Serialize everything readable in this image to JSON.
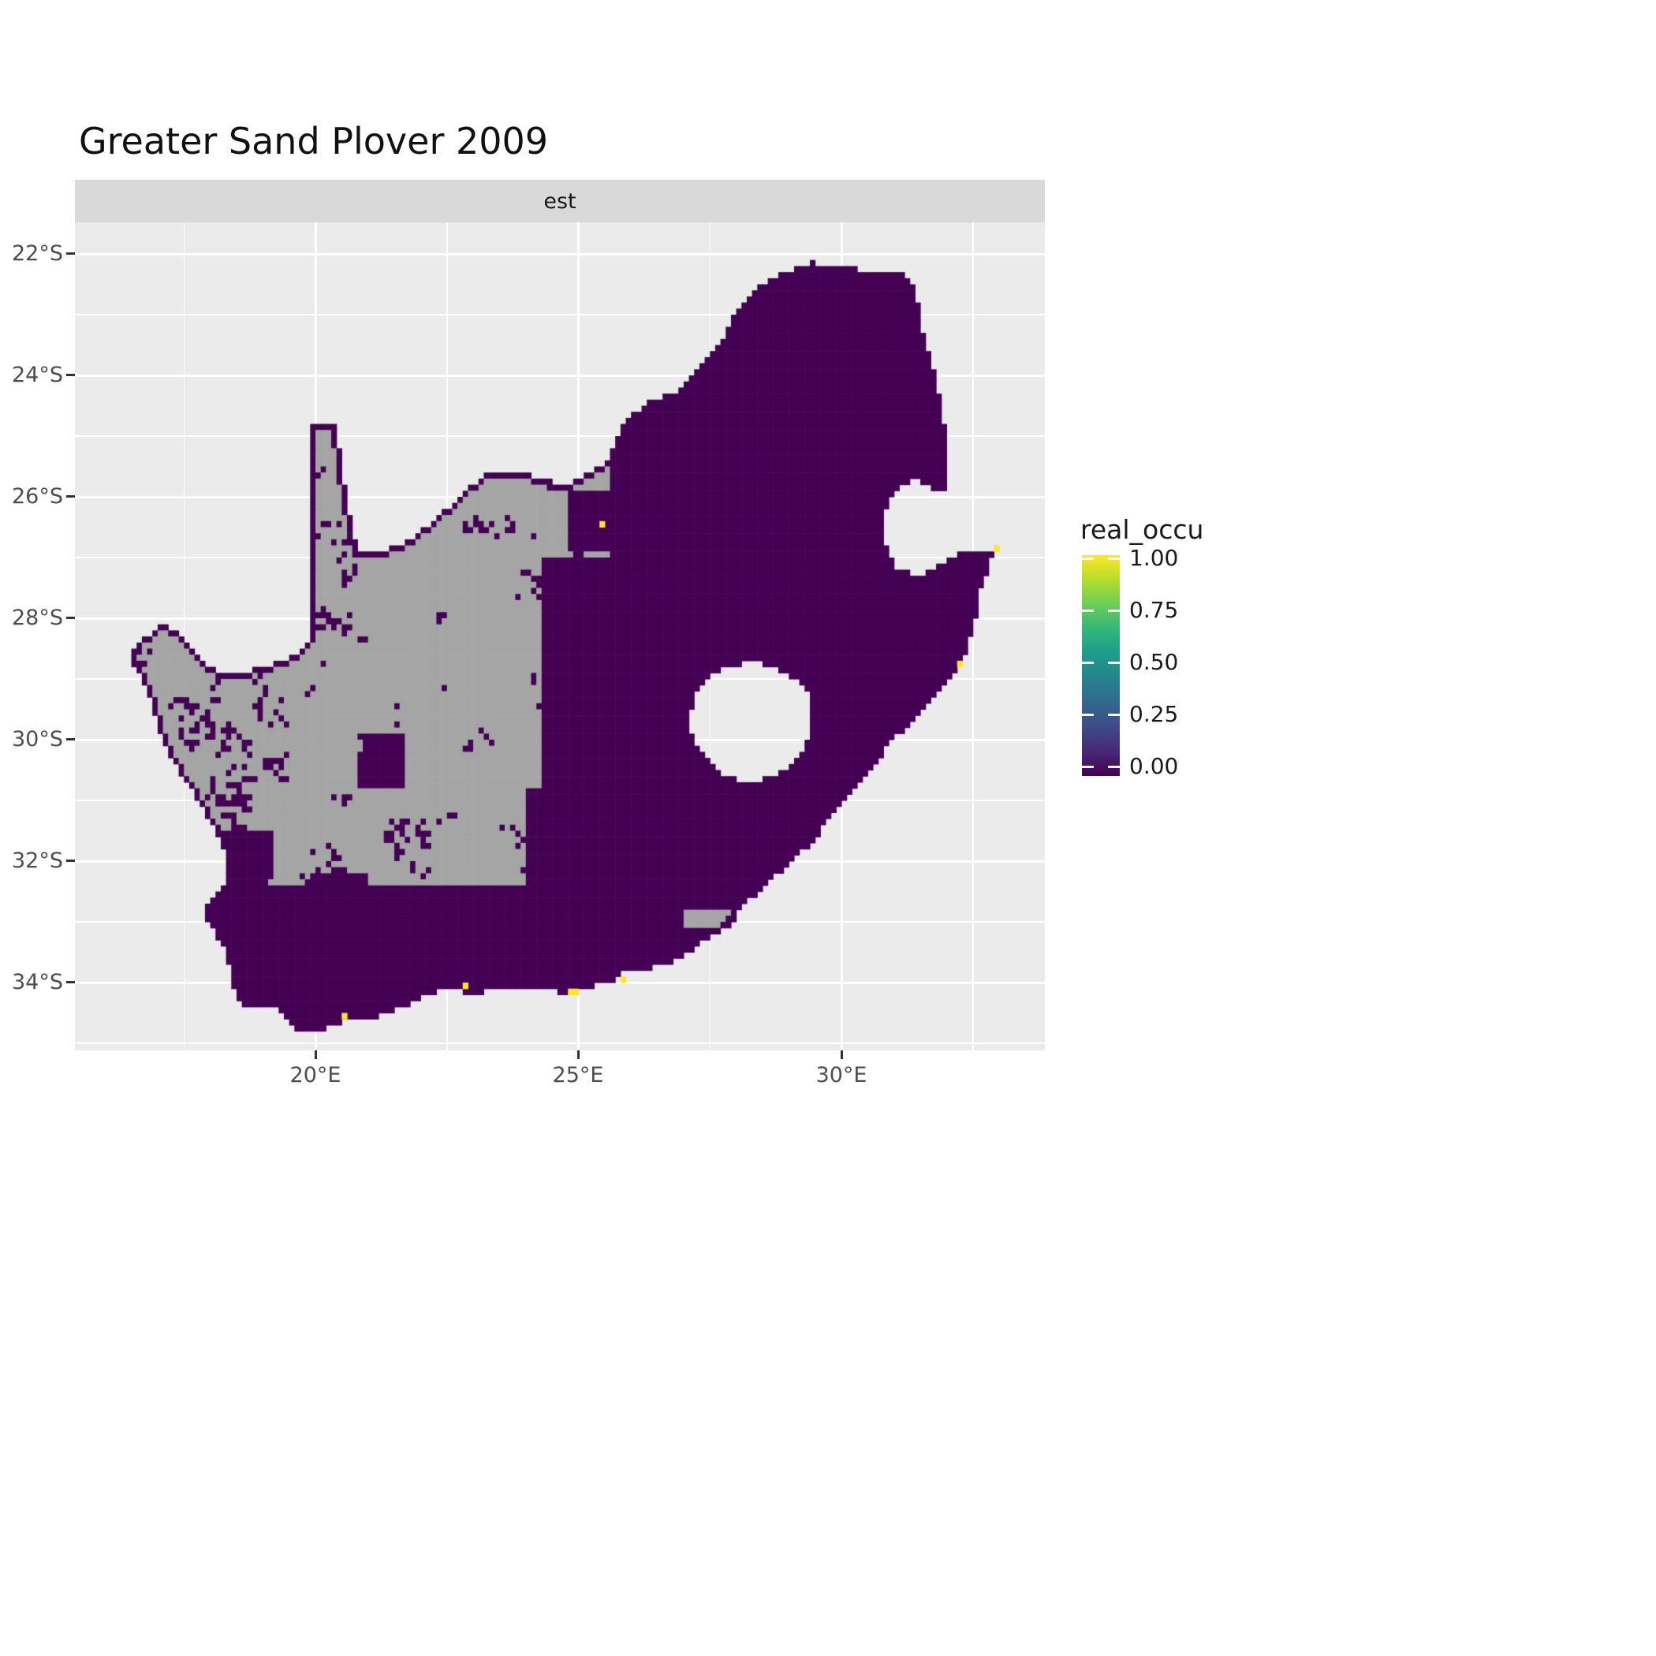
{
  "chart_data": {
    "type": "heatmap",
    "title": "Greater Sand Plover 2009",
    "facet_label": "est",
    "x_axis": {
      "ticks": [
        "20°E",
        "25°E",
        "30°E"
      ],
      "tick_lons": [
        20,
        25,
        30
      ],
      "minor_lons": [
        17.5,
        22.5,
        27.5,
        32.5
      ],
      "range_lon": [
        15.43,
        33.87
      ]
    },
    "y_axis": {
      "ticks": [
        "22°S",
        "24°S",
        "26°S",
        "28°S",
        "30°S",
        "32°S",
        "34°S"
      ],
      "tick_latS": [
        22,
        24,
        26,
        28,
        30,
        32,
        34
      ],
      "minor_latS": [
        23,
        25,
        27,
        29,
        31,
        33,
        35
      ],
      "range_latS": [
        21.48,
        35.12
      ]
    },
    "legend": {
      "title": "real_occu",
      "labels": [
        "1.00",
        "0.75",
        "0.50",
        "0.25",
        "0.00"
      ],
      "values": [
        1,
        0.75,
        0.5,
        0.25,
        0
      ]
    },
    "value_encoding": {
      "value_0_color": "#440154",
      "value_1_color": "#FDE725",
      "na_color": "#A5A5A5"
    },
    "colors": {
      "panel": "#EBEBEB",
      "strip": "#D9D9D9",
      "grid": "#FFFFFF",
      "axis_text": "#4D4D4D",
      "tick_mark": "#333333"
    },
    "description": "Gridded occupancy estimate (est) for Greater Sand Plover 2009 over South Africa; nearly all surveyed cells have value 0 (dark purple), unsurveyed cells are grey (NA), and a handful of coastal cells have value 1 (yellow).",
    "map": {
      "cell_deg": 0.1,
      "outline": [
        [
          16.45,
          28.6
        ],
        [
          16.75,
          28.32
        ],
        [
          17.1,
          28.12
        ],
        [
          17.45,
          28.28
        ],
        [
          17.72,
          28.6
        ],
        [
          18.1,
          28.88
        ],
        [
          18.55,
          28.92
        ],
        [
          19.0,
          28.8
        ],
        [
          19.45,
          28.68
        ],
        [
          19.88,
          28.42
        ],
        [
          19.9,
          27.6
        ],
        [
          19.9,
          26.8
        ],
        [
          19.9,
          26.0
        ],
        [
          19.9,
          25.3
        ],
        [
          19.9,
          24.75
        ],
        [
          20.38,
          24.78
        ],
        [
          20.48,
          25.45
        ],
        [
          20.6,
          26.05
        ],
        [
          20.72,
          26.55
        ],
        [
          20.8,
          26.88
        ],
        [
          21.3,
          26.87
        ],
        [
          21.8,
          26.73
        ],
        [
          22.25,
          26.38
        ],
        [
          22.7,
          26.08
        ],
        [
          22.95,
          25.85
        ],
        [
          23.25,
          25.62
        ],
        [
          23.9,
          25.6
        ],
        [
          24.4,
          25.73
        ],
        [
          24.8,
          25.8
        ],
        [
          25.1,
          25.62
        ],
        [
          25.55,
          25.42
        ],
        [
          25.9,
          24.72
        ],
        [
          26.35,
          24.42
        ],
        [
          26.85,
          24.26
        ],
        [
          27.25,
          23.9
        ],
        [
          27.65,
          23.52
        ],
        [
          27.95,
          23.05
        ],
        [
          28.3,
          22.62
        ],
        [
          28.9,
          22.3
        ],
        [
          29.4,
          22.14
        ],
        [
          29.95,
          22.2
        ],
        [
          30.45,
          22.28
        ],
        [
          30.95,
          22.3
        ],
        [
          31.3,
          22.38
        ],
        [
          31.45,
          22.75
        ],
        [
          31.55,
          23.3
        ],
        [
          31.75,
          23.9
        ],
        [
          31.88,
          24.4
        ],
        [
          31.98,
          24.9
        ],
        [
          32.03,
          25.4
        ],
        [
          31.97,
          25.95
        ],
        [
          31.4,
          25.72
        ],
        [
          30.98,
          25.92
        ],
        [
          30.8,
          26.25
        ],
        [
          30.82,
          26.8
        ],
        [
          31.05,
          27.18
        ],
        [
          31.5,
          27.32
        ],
        [
          31.97,
          27.06
        ],
        [
          32.35,
          26.86
        ],
        [
          32.92,
          26.86
        ],
        [
          32.66,
          27.48
        ],
        [
          32.54,
          28.05
        ],
        [
          32.38,
          28.52
        ],
        [
          32.18,
          28.84
        ],
        [
          31.78,
          29.28
        ],
        [
          31.32,
          29.78
        ],
        [
          31.02,
          29.92
        ],
        [
          30.65,
          30.4
        ],
        [
          30.28,
          30.8
        ],
        [
          29.85,
          31.18
        ],
        [
          29.5,
          31.62
        ],
        [
          29.1,
          31.98
        ],
        [
          28.6,
          32.35
        ],
        [
          28.2,
          32.68
        ],
        [
          27.88,
          33.04
        ],
        [
          27.4,
          33.32
        ],
        [
          26.9,
          33.62
        ],
        [
          26.4,
          33.76
        ],
        [
          25.95,
          33.78
        ],
        [
          25.63,
          33.98
        ],
        [
          25.3,
          34.05
        ],
        [
          24.85,
          34.2
        ],
        [
          24.2,
          34.08
        ],
        [
          23.6,
          34.1
        ],
        [
          22.95,
          34.18
        ],
        [
          22.55,
          34.08
        ],
        [
          22.14,
          34.2
        ],
        [
          21.6,
          34.42
        ],
        [
          21.0,
          34.6
        ],
        [
          20.45,
          34.66
        ],
        [
          20.0,
          34.82
        ],
        [
          19.65,
          34.78
        ],
        [
          19.3,
          34.45
        ],
        [
          18.85,
          34.38
        ],
        [
          18.48,
          34.34
        ],
        [
          18.42,
          33.92
        ],
        [
          18.28,
          33.48
        ],
        [
          17.95,
          33.0
        ],
        [
          17.88,
          32.72
        ],
        [
          18.3,
          32.32
        ],
        [
          18.3,
          31.9
        ],
        [
          18.12,
          31.55
        ],
        [
          17.85,
          31.1
        ],
        [
          17.5,
          30.65
        ],
        [
          17.25,
          30.3
        ],
        [
          17.02,
          29.85
        ],
        [
          16.9,
          29.4
        ],
        [
          16.7,
          28.98
        ]
      ],
      "lesotho_hole": [
        [
          27.05,
          29.7
        ],
        [
          27.3,
          29.12
        ],
        [
          27.75,
          28.8
        ],
        [
          28.35,
          28.72
        ],
        [
          28.95,
          28.9
        ],
        [
          29.35,
          29.2
        ],
        [
          29.45,
          29.65
        ],
        [
          29.28,
          30.18
        ],
        [
          28.85,
          30.55
        ],
        [
          28.25,
          30.72
        ],
        [
          27.7,
          30.55
        ],
        [
          27.3,
          30.15
        ]
      ],
      "regions": [
        [
          28.8,
          30.6,
          23.8,
          25.2,
          0.45
        ],
        [
          26.2,
          27.4,
          24.2,
          25.0,
          0.6
        ],
        [
          26.5,
          32.7,
          21.9,
          24.25,
          0.55
        ],
        [
          24.8,
          25.7,
          25.9,
          26.9,
          0.6
        ],
        [
          25.65,
          32.7,
          24.2,
          28.1,
          0.93
        ],
        [
          26.2,
          30.3,
          28.0,
          31.55,
          0.92
        ],
        [
          30.3,
          33.1,
          26.6,
          31.2,
          0.95
        ],
        [
          27.0,
          30.3,
          31.5,
          32.85,
          0.78
        ],
        [
          24.0,
          27.0,
          30.8,
          32.5,
          0.45
        ],
        [
          24.3,
          26.4,
          27.0,
          30.8,
          0.5
        ],
        [
          20.7,
          23.3,
          33.2,
          33.75,
          0.5
        ],
        [
          17.9,
          19.9,
          32.5,
          35.0,
          0.88
        ],
        [
          18.0,
          27.7,
          33.15,
          35.0,
          0.92
        ],
        [
          18.0,
          27.0,
          32.4,
          33.15,
          0.6
        ],
        [
          19.5,
          21.0,
          32.2,
          33.3,
          0.3
        ],
        [
          17.9,
          19.2,
          31.5,
          32.5,
          0.4
        ],
        [
          20.8,
          21.7,
          29.9,
          30.8,
          0.4
        ],
        [
          16.4,
          19.5,
          28.4,
          31.6,
          0.15
        ]
      ],
      "base_prob": 0.1,
      "boundary_prob": 0.6,
      "yellow_cells": [
        [
          20.52,
          34.55
        ],
        [
          22.82,
          34.02
        ],
        [
          24.88,
          34.15
        ],
        [
          24.98,
          34.12
        ],
        [
          25.85,
          33.95
        ],
        [
          25.44,
          26.42
        ],
        [
          32.2,
          28.78
        ],
        [
          32.9,
          26.88
        ]
      ]
    }
  }
}
